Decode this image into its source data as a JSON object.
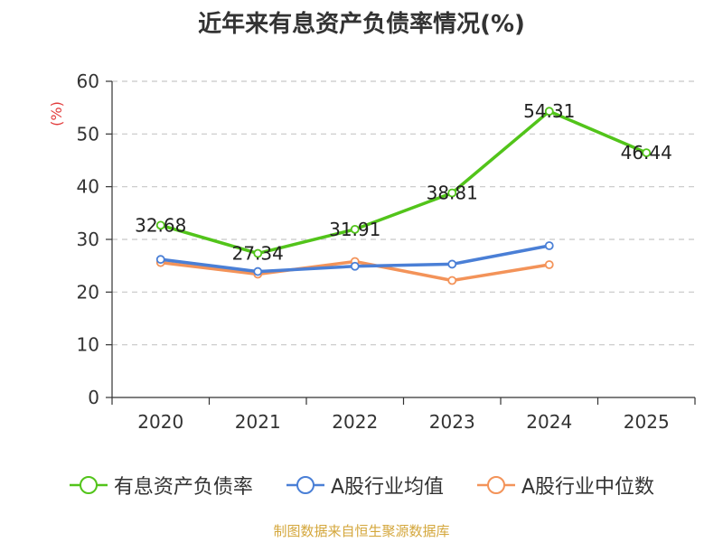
{
  "chart_data": {
    "type": "line",
    "title": "近年来有息资产负债率情况(%)",
    "ylabel": "(%)",
    "xlabel": "",
    "categories": [
      "2020",
      "2021",
      "2022",
      "2023",
      "2024",
      "2025"
    ],
    "ylim": [
      0,
      60
    ],
    "yticks": [
      0,
      10,
      20,
      30,
      40,
      50,
      60
    ],
    "grid": true,
    "legend_position": "bottom",
    "series": [
      {
        "name": "有息资产负债率",
        "color": "#52c41a",
        "values": [
          32.68,
          27.34,
          31.91,
          38.81,
          54.31,
          46.44
        ],
        "labels": [
          "32.68",
          "27.34",
          "31.91",
          "38.81",
          "54.31",
          "46.44"
        ]
      },
      {
        "name": "A股行业均值",
        "color": "#4a7fd6",
        "values": [
          26.2,
          23.9,
          24.9,
          25.3,
          28.8,
          null
        ]
      },
      {
        "name": "A股行业中位数",
        "color": "#f39359",
        "values": [
          25.6,
          23.4,
          25.8,
          22.2,
          25.2,
          null
        ]
      }
    ],
    "source": "制图数据来自恒生聚源数据库"
  }
}
